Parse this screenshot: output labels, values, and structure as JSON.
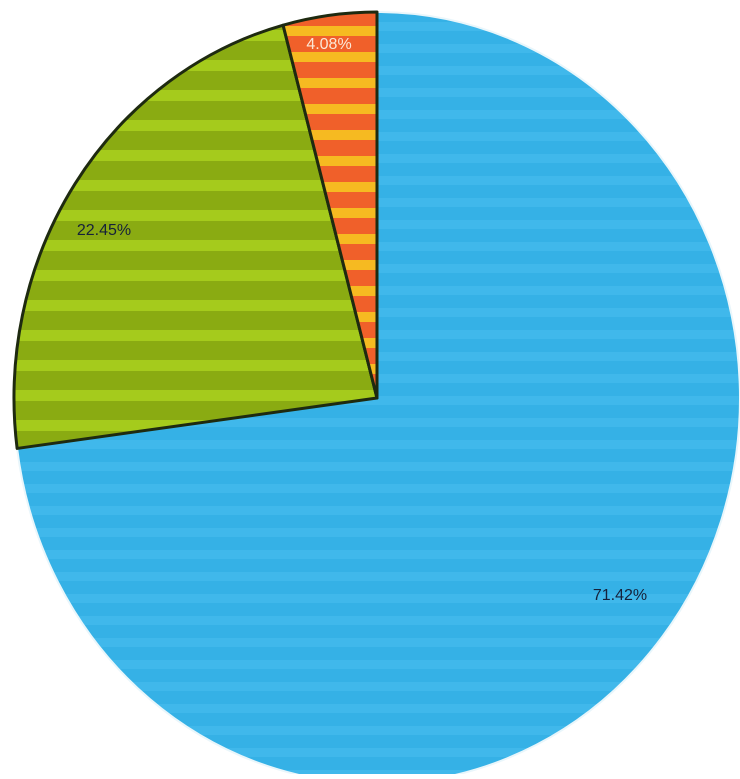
{
  "chart_data": {
    "type": "pie",
    "start_angle_deg": 0,
    "direction": "clockwise",
    "slices": [
      {
        "value": 71.42,
        "label": "71.42%",
        "color": "#35b1e6",
        "label_color": "#16213a"
      },
      {
        "value": 22.45,
        "label": "22.45%",
        "color": "#8fb116",
        "label_color": "#16213a"
      },
      {
        "value": 4.08,
        "label": "4.08%",
        "color": "#f26322",
        "label_color": "#fbe7d6"
      }
    ]
  }
}
